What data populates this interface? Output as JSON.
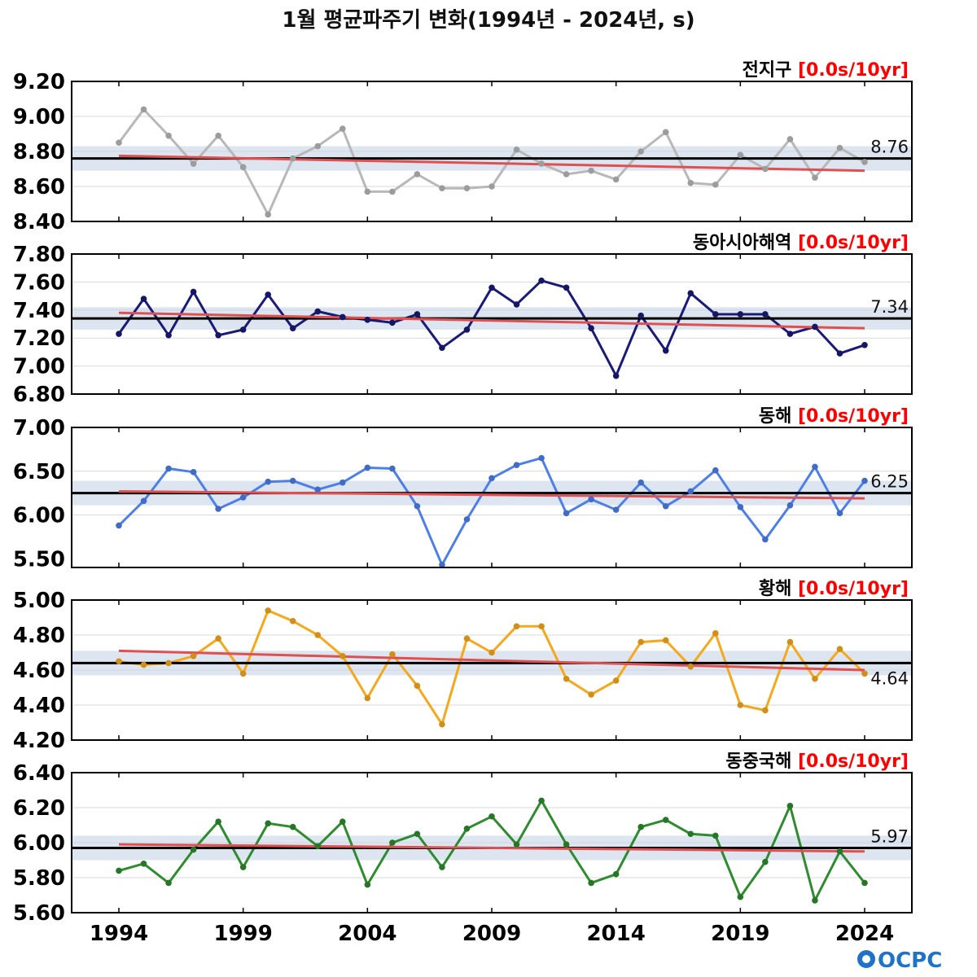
{
  "title": "1월 평균파주기 변화(1994년 - 2024년, s)",
  "logo": "OCPC",
  "chart_data": {
    "type": "line",
    "x": [
      1994,
      1995,
      1996,
      1997,
      1998,
      1999,
      2000,
      2001,
      2002,
      2003,
      2004,
      2005,
      2006,
      2007,
      2008,
      2009,
      2010,
      2011,
      2012,
      2013,
      2014,
      2015,
      2016,
      2017,
      2018,
      2019,
      2020,
      2021,
      2022,
      2023,
      2024
    ],
    "xticks": [
      1994,
      1999,
      2004,
      2009,
      2014,
      2019,
      2024
    ],
    "panels": [
      {
        "name": "전지구",
        "trend_label": "[0.0s/10yr]",
        "color": "#b8b8b8",
        "ylim": [
          8.4,
          9.2
        ],
        "yticks": [
          "9.20",
          "9.00",
          "8.80",
          "8.60",
          "8.40"
        ],
        "mean": 8.76,
        "mean_label": "8.76",
        "band": 0.07,
        "trend": [
          8.775,
          8.69
        ],
        "values": [
          8.85,
          9.04,
          8.89,
          8.73,
          8.89,
          8.71,
          8.44,
          8.76,
          8.83,
          8.93,
          8.57,
          8.57,
          8.67,
          8.59,
          8.59,
          8.6,
          8.81,
          8.73,
          8.67,
          8.69,
          8.64,
          8.8,
          8.91,
          8.62,
          8.61,
          8.78,
          8.7,
          8.87,
          8.65,
          8.82,
          8.74
        ]
      },
      {
        "name": "동아시아해역",
        "trend_label": "[0.0s/10yr]",
        "color": "#1a1a78",
        "ylim": [
          6.8,
          7.8
        ],
        "yticks": [
          "7.80",
          "7.60",
          "7.40",
          "7.20",
          "7.00",
          "6.80"
        ],
        "mean": 7.34,
        "mean_label": "7.34",
        "band": 0.08,
        "trend": [
          7.38,
          7.27
        ],
        "values": [
          7.23,
          7.48,
          7.22,
          7.53,
          7.22,
          7.26,
          7.51,
          7.27,
          7.39,
          7.35,
          7.33,
          7.31,
          7.37,
          7.13,
          7.26,
          7.56,
          7.44,
          7.61,
          7.56,
          7.27,
          6.93,
          7.36,
          7.11,
          7.52,
          7.37,
          7.37,
          7.37,
          7.23,
          7.28,
          7.09,
          7.15
        ]
      },
      {
        "name": "동해",
        "trend_label": "[0.0s/10yr]",
        "color": "#4d7fe8",
        "ylim": [
          5.4,
          7.0
        ],
        "yticks": [
          "7.00",
          "6.50",
          "6.00",
          "5.50"
        ],
        "mean": 6.25,
        "mean_label": "6.25",
        "band": 0.14,
        "trend": [
          6.27,
          6.19
        ],
        "values": [
          5.88,
          6.16,
          6.53,
          6.49,
          6.07,
          6.2,
          6.38,
          6.39,
          6.29,
          6.37,
          6.54,
          6.53,
          6.1,
          5.43,
          5.95,
          6.42,
          6.57,
          6.65,
          6.02,
          6.18,
          6.06,
          6.37,
          6.1,
          6.27,
          6.51,
          6.09,
          5.72,
          6.11,
          6.55,
          6.02,
          6.39
        ]
      },
      {
        "name": "황해",
        "trend_label": "[0.0s/10yr]",
        "color": "#f5a81c",
        "ylim": [
          4.2,
          5.0
        ],
        "yticks": [
          "5.00",
          "4.80",
          "4.60",
          "4.40",
          "4.20"
        ],
        "mean": 4.64,
        "mean_label": "4.64",
        "band": 0.07,
        "trend": [
          4.71,
          4.6
        ],
        "values": [
          4.65,
          4.63,
          4.64,
          4.68,
          4.78,
          4.58,
          4.94,
          4.88,
          4.8,
          4.68,
          4.44,
          4.69,
          4.51,
          4.29,
          4.78,
          4.7,
          4.85,
          4.85,
          4.55,
          4.46,
          4.54,
          4.76,
          4.77,
          4.62,
          4.81,
          4.4,
          4.37,
          4.76,
          4.55,
          4.72,
          4.58
        ]
      },
      {
        "name": "동중국해",
        "trend_label": "[0.0s/10yr]",
        "color": "#2e8b2e",
        "ylim": [
          5.6,
          6.4
        ],
        "yticks": [
          "6.40",
          "6.20",
          "6.00",
          "5.80",
          "5.60"
        ],
        "mean": 5.97,
        "mean_label": "5.97",
        "band": 0.07,
        "trend": [
          5.99,
          5.95
        ],
        "values": [
          5.84,
          5.88,
          5.77,
          5.96,
          6.12,
          5.86,
          6.11,
          6.09,
          5.98,
          6.12,
          5.76,
          6.0,
          6.05,
          5.86,
          6.08,
          6.15,
          5.99,
          6.24,
          5.99,
          5.77,
          5.82,
          6.09,
          6.13,
          6.05,
          6.04,
          5.69,
          5.89,
          6.21,
          5.67,
          5.95,
          5.77
        ]
      }
    ]
  }
}
